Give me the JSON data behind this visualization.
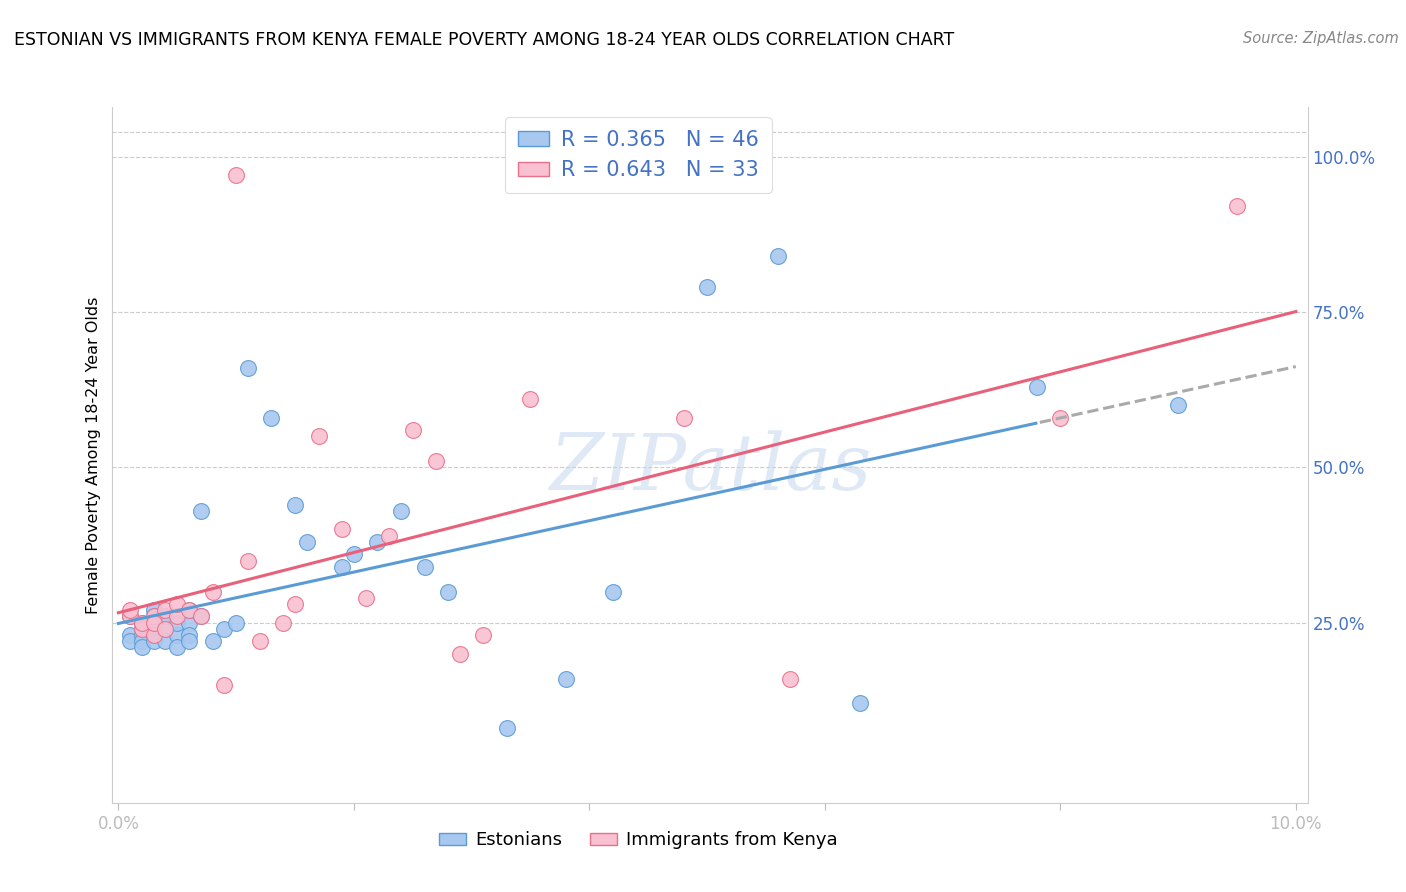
{
  "title": "ESTONIAN VS IMMIGRANTS FROM KENYA FEMALE POVERTY AMONG 18-24 YEAR OLDS CORRELATION CHART",
  "source": "Source: ZipAtlas.com",
  "ylabel": "Female Poverty Among 18-24 Year Olds",
  "y_ticks": [
    0.25,
    0.5,
    0.75,
    1.0
  ],
  "y_tick_labels": [
    "25.0%",
    "50.0%",
    "75.0%",
    "100.0%"
  ],
  "x_tick_labels": [
    "0.0%",
    "",
    "",
    "",
    "",
    "10.0%"
  ],
  "legend_estonian": "R = 0.365   N = 46",
  "legend_kenya": "R = 0.643   N = 33",
  "color_estonian_fill": "#A8C8F0",
  "color_estonian_edge": "#5B9BD5",
  "color_kenya_fill": "#F8C0D0",
  "color_kenya_edge": "#E8708A",
  "color_line_estonian": "#5B9BD5",
  "color_line_kenya": "#E8607A",
  "color_text_blue": "#4472C4",
  "watermark": "ZIPatlas",
  "estonian_x": [
    0.001,
    0.001,
    0.001,
    0.002,
    0.002,
    0.002,
    0.002,
    0.002,
    0.003,
    0.003,
    0.003,
    0.003,
    0.003,
    0.004,
    0.004,
    0.004,
    0.005,
    0.005,
    0.005,
    0.006,
    0.006,
    0.006,
    0.006,
    0.007,
    0.007,
    0.008,
    0.009,
    0.01,
    0.011,
    0.013,
    0.015,
    0.016,
    0.019,
    0.02,
    0.022,
    0.024,
    0.026,
    0.028,
    0.033,
    0.038,
    0.042,
    0.05,
    0.056,
    0.063,
    0.078,
    0.09
  ],
  "estonian_y": [
    0.26,
    0.23,
    0.22,
    0.24,
    0.23,
    0.25,
    0.22,
    0.21,
    0.23,
    0.22,
    0.25,
    0.27,
    0.26,
    0.24,
    0.22,
    0.26,
    0.23,
    0.25,
    0.21,
    0.25,
    0.27,
    0.23,
    0.22,
    0.43,
    0.26,
    0.22,
    0.24,
    0.25,
    0.66,
    0.58,
    0.44,
    0.38,
    0.34,
    0.36,
    0.38,
    0.43,
    0.34,
    0.3,
    0.08,
    0.16,
    0.3,
    0.79,
    0.84,
    0.12,
    0.63,
    0.6
  ],
  "kenya_x": [
    0.001,
    0.001,
    0.002,
    0.002,
    0.003,
    0.003,
    0.003,
    0.004,
    0.004,
    0.005,
    0.005,
    0.006,
    0.007,
    0.008,
    0.009,
    0.01,
    0.011,
    0.012,
    0.014,
    0.015,
    0.017,
    0.019,
    0.021,
    0.023,
    0.025,
    0.027,
    0.029,
    0.031,
    0.035,
    0.048,
    0.057,
    0.08,
    0.095
  ],
  "kenya_y": [
    0.26,
    0.27,
    0.24,
    0.25,
    0.23,
    0.26,
    0.25,
    0.27,
    0.24,
    0.26,
    0.28,
    0.27,
    0.26,
    0.3,
    0.15,
    0.97,
    0.35,
    0.22,
    0.25,
    0.28,
    0.55,
    0.4,
    0.29,
    0.39,
    0.56,
    0.51,
    0.2,
    0.23,
    0.61,
    0.58,
    0.16,
    0.58,
    0.92
  ]
}
